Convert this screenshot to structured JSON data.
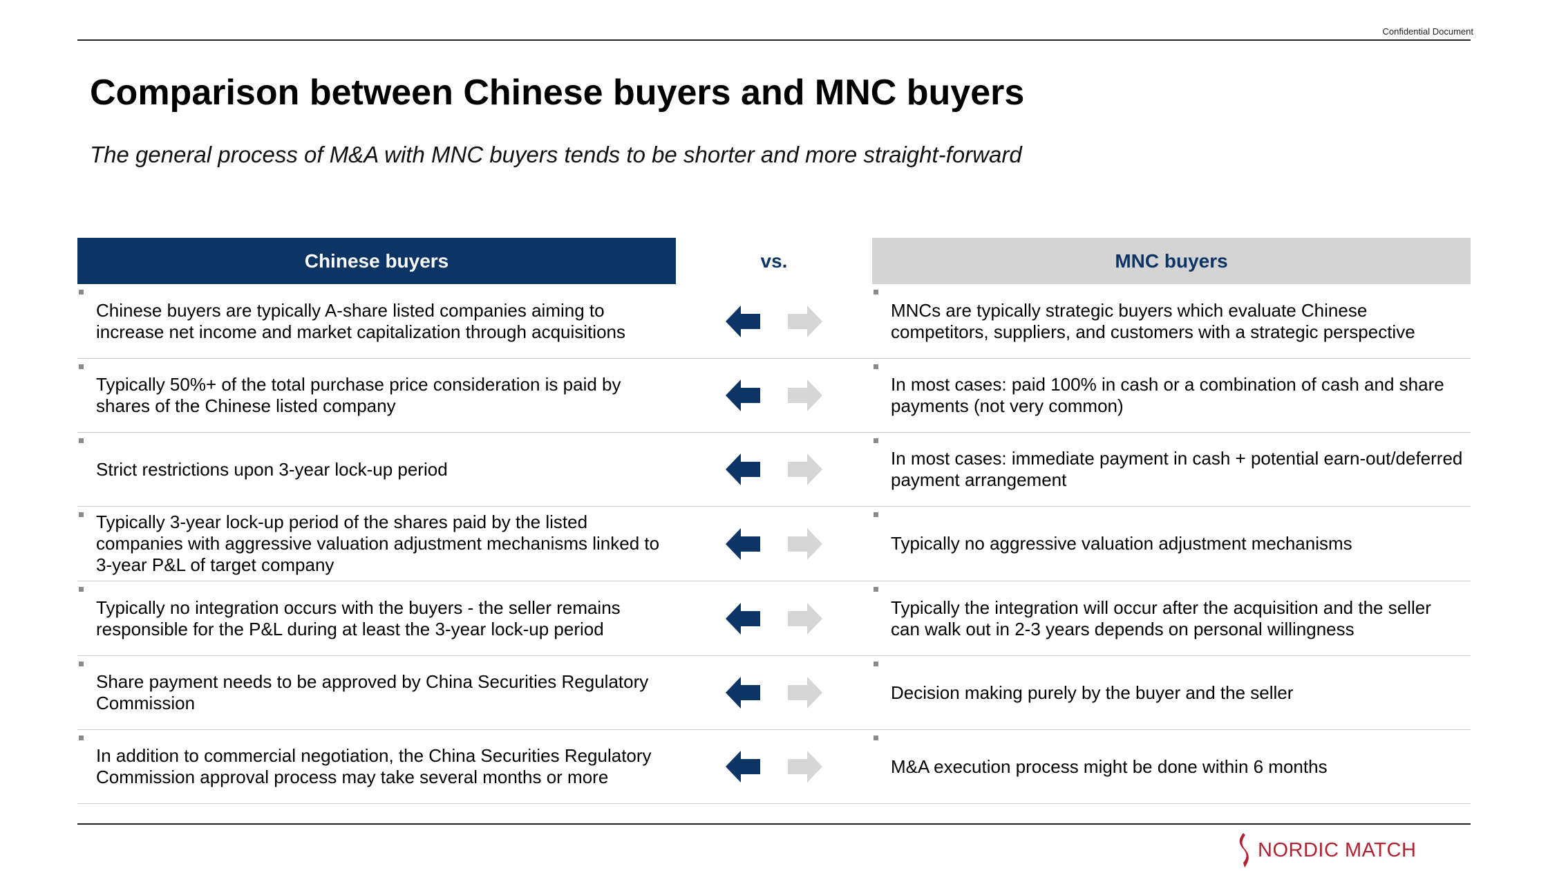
{
  "header": {
    "confidential": "Confidential Document"
  },
  "title": "Comparison between Chinese buyers and MNC buyers",
  "subtitle": "The general process of M&A with MNC buyers tends to be shorter and more straight-forward",
  "columns": {
    "left": "Chinese buyers",
    "vs": "vs.",
    "right": "MNC buyers"
  },
  "rows": [
    {
      "left": "Chinese buyers are typically A-share listed companies aiming to increase net income and market capitalization through acquisitions",
      "right": "MNCs are typically strategic buyers which evaluate Chinese competitors, suppliers, and customers with a strategic perspective"
    },
    {
      "left": "Typically 50%+ of the total purchase price consideration is paid by shares of the Chinese listed company",
      "right": "In most cases: paid 100% in cash or a combination of cash and share payments (not very common)"
    },
    {
      "left": "Strict restrictions upon 3-year lock-up period",
      "right": "In most cases: immediate payment in cash + potential earn-out/deferred payment arrangement"
    },
    {
      "left": "Typically 3-year lock-up period of the shares paid by the listed companies with aggressive valuation adjustment mechanisms linked to 3-year P&L of target company",
      "right": "Typically no aggressive valuation adjustment mechanisms"
    },
    {
      "left": "Typically no integration occurs with the buyers - the seller remains responsible for the P&L during at least the 3-year lock-up period",
      "right": "Typically the integration will occur after the acquisition and the seller can walk out in 2-3 years depends on personal willingness"
    },
    {
      "left": "Share payment needs to be approved by China Securities Regulatory Commission",
      "right": "Decision making purely by the buyer and the seller"
    },
    {
      "left": "In addition to commercial negotiation, the China Securities Regulatory Commission approval process may take several months or more",
      "right": "M&A execution process might be done within 6 months"
    }
  ],
  "icons": {
    "left_arrow": "arrow-left-icon",
    "right_arrow": "arrow-right-icon",
    "logo_mark": "nordic-match-logo-icon"
  },
  "colors": {
    "navy": "#0c3566",
    "light_grey": "#d4d4d4",
    "arrow_grey": "#d6d6d6",
    "logo_red": "#b3202f"
  },
  "logo": {
    "text": "NORDIC MATCH"
  }
}
